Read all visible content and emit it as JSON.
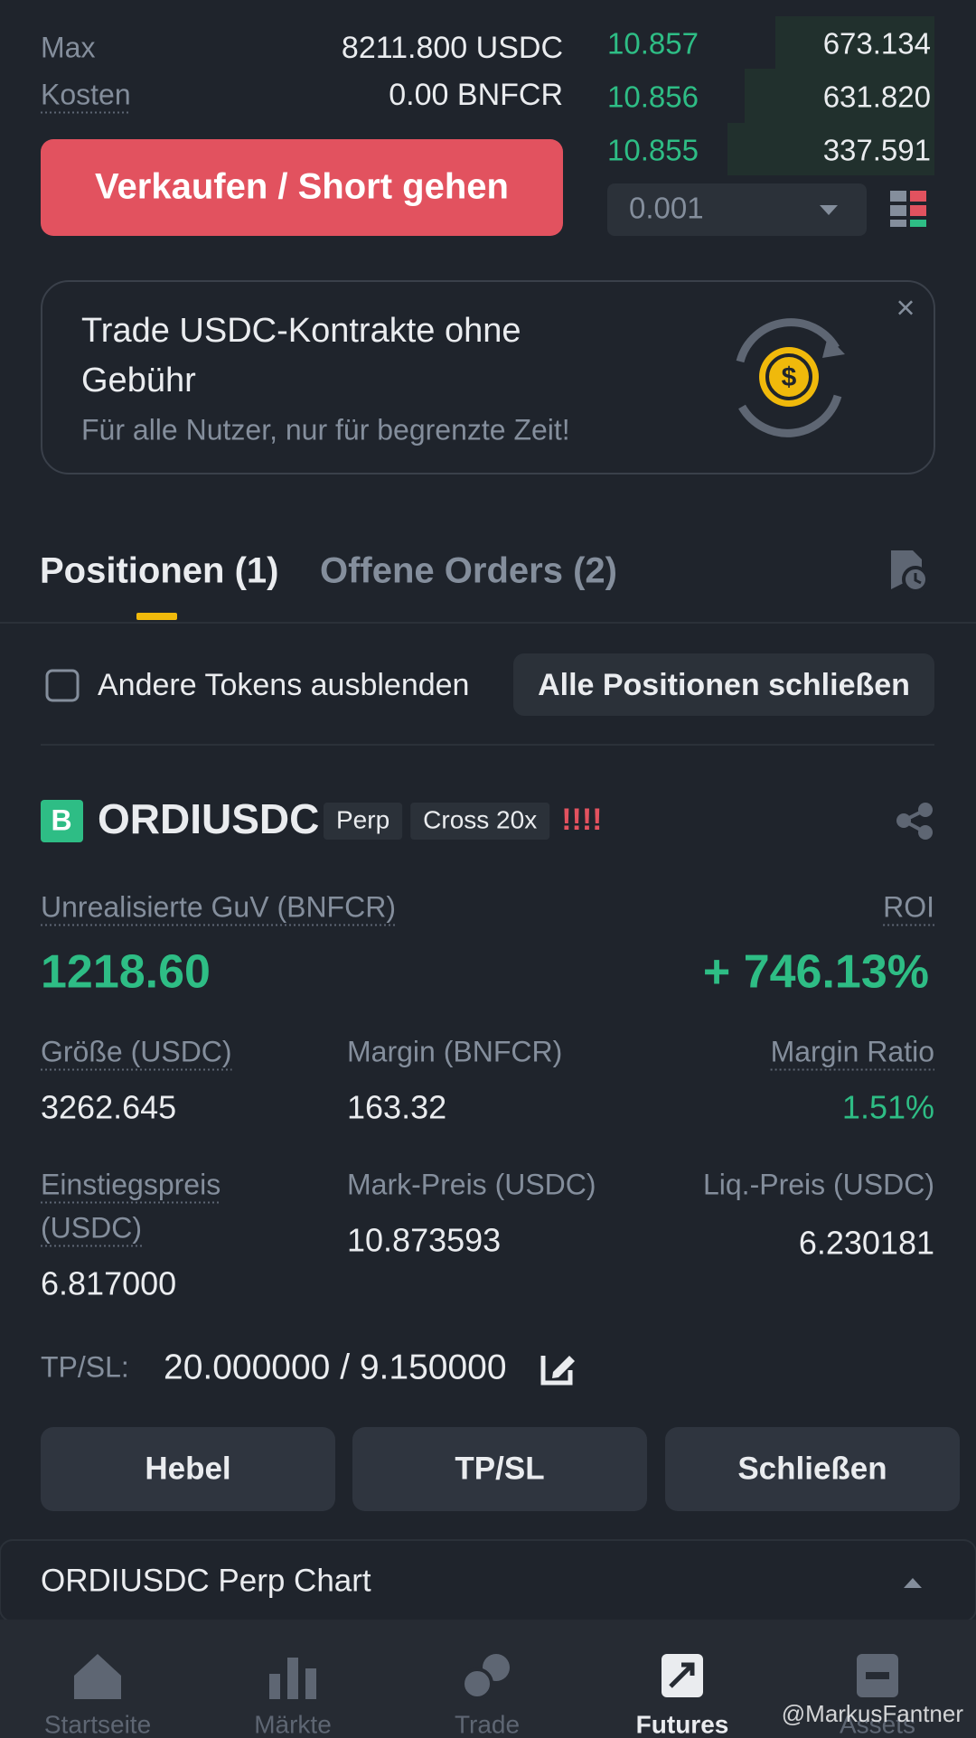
{
  "order_form": {
    "max_label": "Max",
    "max_value": "8211.800 USDC",
    "cost_label": "Kosten",
    "cost_value": "0.00 BNFCR",
    "sell_button": "Verkaufen / Short gehen"
  },
  "order_book": {
    "rows": [
      {
        "price": "10.857",
        "amount": "673.134"
      },
      {
        "price": "10.856",
        "amount": "631.820"
      },
      {
        "price": "10.855",
        "amount": "337.591"
      }
    ],
    "precision": "0.001"
  },
  "banner": {
    "title_lines": [
      "Trade USDC-Kontrakte ohne",
      "Gebühr"
    ],
    "subtitle": "Für alle Nutzer, nur für begrenzte Zeit!",
    "close": "×"
  },
  "tabs": [
    {
      "label": "Positionen (1)",
      "active": true
    },
    {
      "label": "Offene Orders (2)",
      "active": false
    }
  ],
  "filter": {
    "checkbox_label": "Andere Tokens ausblenden",
    "close_all": "Alle Positionen schließen"
  },
  "position": {
    "side_badge": "B",
    "symbol": "ORDIUSDC",
    "tags": [
      "Perp",
      "Cross 20x"
    ],
    "alert": "!!!!",
    "pnl_label": "Unrealisierte GuV (BNFCR)",
    "pnl_value": "1218.60",
    "roi_label": "ROI",
    "roi_value": "+ 746.13%",
    "fields": [
      {
        "label_lines": [
          "Größe (USDC)"
        ],
        "value": "3262.645"
      },
      {
        "label_lines": [
          "Margin (BNFCR)"
        ],
        "value": "163.32"
      },
      {
        "label_lines": [
          "Margin Ratio"
        ],
        "value": "1.51%"
      },
      {
        "label_lines": [
          "Einstiegspreis",
          "(USDC)"
        ],
        "value": "6.817000"
      },
      {
        "label_lines": [
          "Mark-Preis (USDC)"
        ],
        "value": "10.873593"
      },
      {
        "label_lines": [
          "Liq.-Preis (USDC)"
        ],
        "value": "6.230181"
      }
    ],
    "tpsl_label": "TP/SL:",
    "tpsl_value": "20.000000 / 9.150000",
    "buttons": [
      "Hebel",
      "TP/SL",
      "Schließen"
    ]
  },
  "chart_section": "ORDIUSDC Perp Chart",
  "nav": [
    {
      "label": "Startseite",
      "active": false
    },
    {
      "label": "Märkte",
      "active": false
    },
    {
      "label": "Trade",
      "active": false
    },
    {
      "label": "Futures",
      "active": true
    },
    {
      "label": "Assets",
      "active": false
    }
  ],
  "watermark": "@MarkusFantner"
}
